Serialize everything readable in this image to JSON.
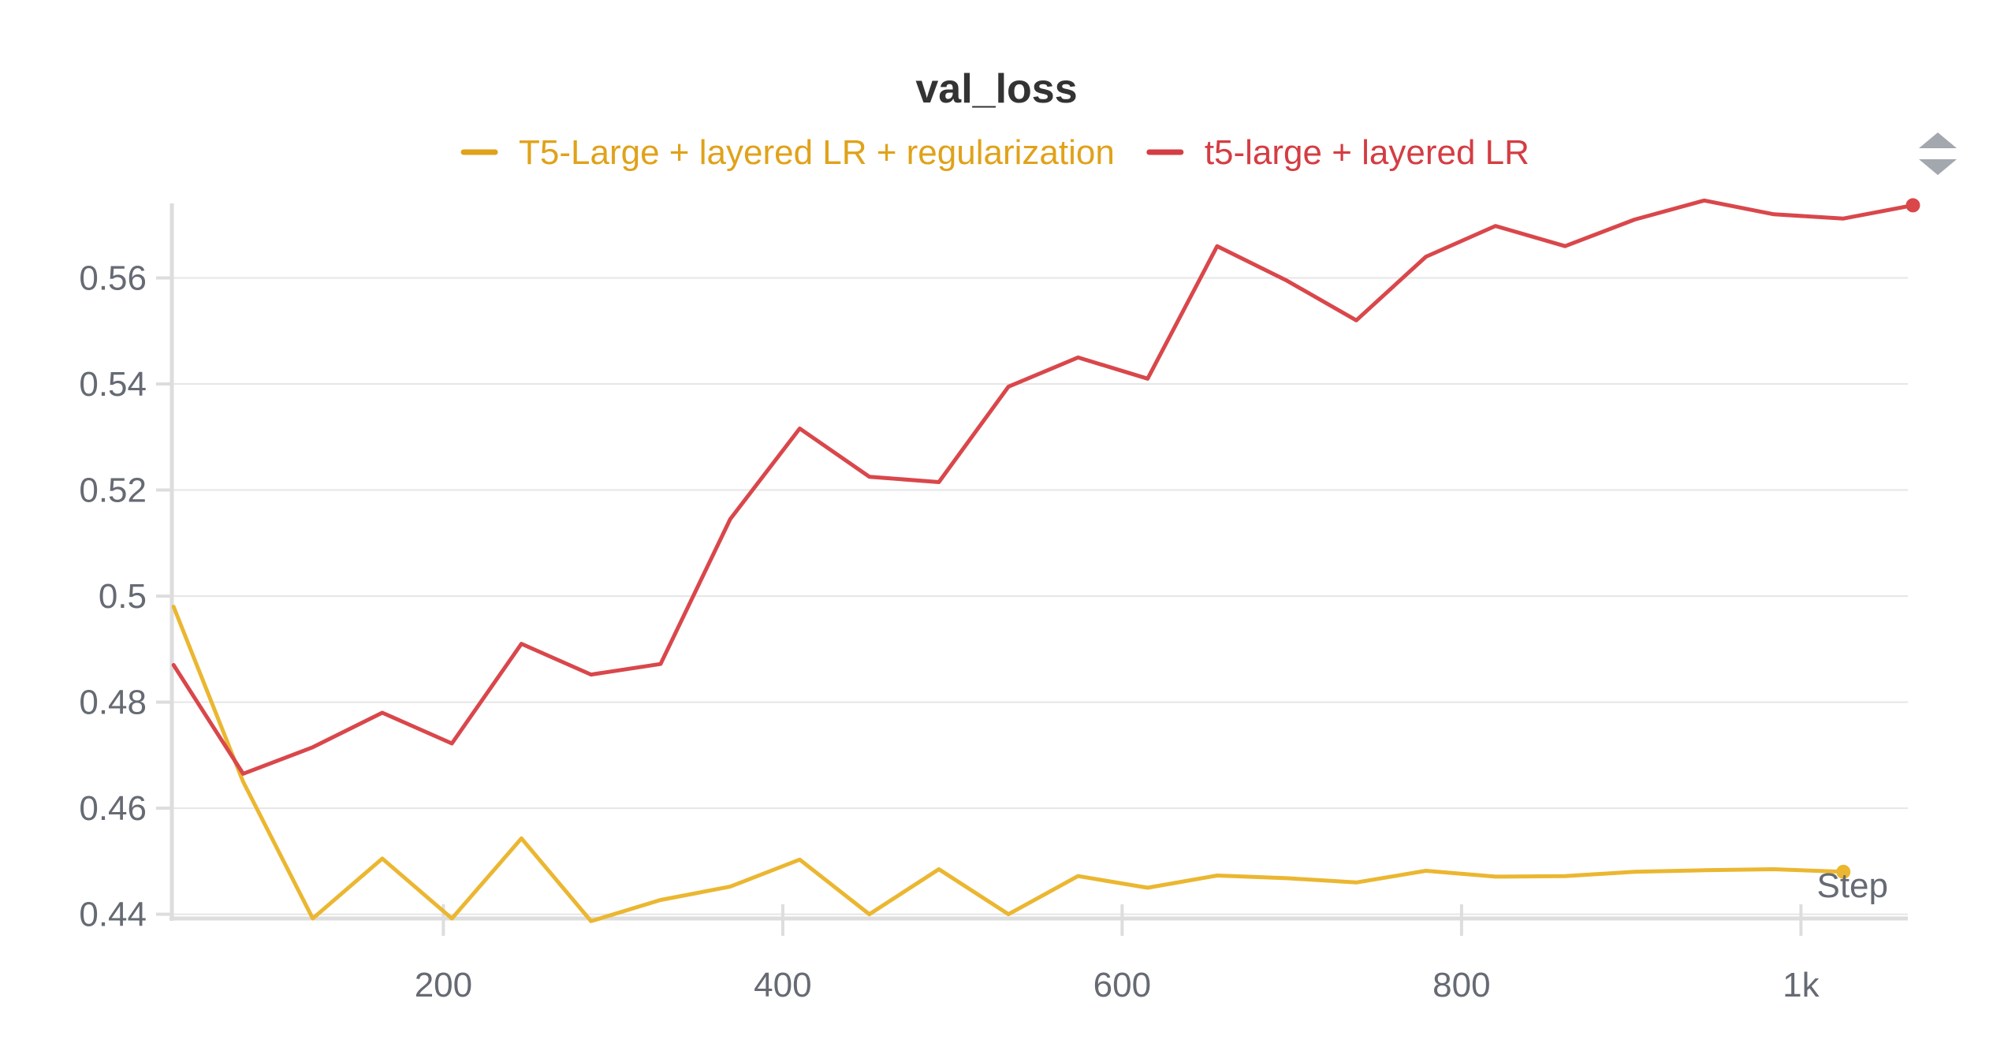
{
  "chart_data": {
    "type": "line",
    "title": "val_loss",
    "xlabel": "Step",
    "ylabel": "",
    "xlim": [
      40,
      1063
    ],
    "ylim": [
      0.4392,
      0.5745
    ],
    "x_ticks": [
      {
        "value": 200,
        "label": "200"
      },
      {
        "value": 400,
        "label": "400"
      },
      {
        "value": 600,
        "label": "600"
      },
      {
        "value": 800,
        "label": "800"
      },
      {
        "value": 1000,
        "label": "1k"
      }
    ],
    "y_ticks": [
      {
        "value": 0.44,
        "label": "0.44"
      },
      {
        "value": 0.46,
        "label": "0.46"
      },
      {
        "value": 0.48,
        "label": "0.48"
      },
      {
        "value": 0.5,
        "label": "0.5"
      },
      {
        "value": 0.52,
        "label": "0.52"
      },
      {
        "value": 0.54,
        "label": "0.54"
      },
      {
        "value": 0.56,
        "label": "0.56"
      }
    ],
    "grid": true,
    "legend_position": "top-center",
    "series": [
      {
        "name": "T5-Large + layered LR + regularization",
        "color": "#ebb731",
        "legend_color": "#e0a21a",
        "x": [
          41,
          82,
          123,
          164,
          205,
          246,
          287,
          328,
          369,
          410,
          451,
          492,
          533,
          574,
          615,
          656,
          697,
          738,
          779,
          820,
          861,
          902,
          943,
          984,
          1025
        ],
        "y": [
          0.498,
          0.465,
          0.4392,
          0.4505,
          0.4392,
          0.4543,
          0.4387,
          0.4427,
          0.4452,
          0.4503,
          0.44,
          0.4485,
          0.44,
          0.4472,
          0.445,
          0.4473,
          0.4468,
          0.446,
          0.4482,
          0.4471,
          0.4472,
          0.448,
          0.4483,
          0.4485,
          0.448
        ],
        "end_marker": true
      },
      {
        "name": "t5-large + layered LR",
        "color": "#d9474b",
        "legend_color": "#d43d43",
        "x": [
          41,
          82,
          123,
          164,
          205,
          246,
          287,
          328,
          369,
          410,
          451,
          492,
          533,
          574,
          615,
          656,
          697,
          738,
          779,
          820,
          861,
          902,
          943,
          984,
          1025,
          1066
        ],
        "y": [
          0.487,
          0.4665,
          0.4715,
          0.478,
          0.4722,
          0.491,
          0.4852,
          0.4872,
          0.5145,
          0.5316,
          0.5225,
          0.5215,
          0.5395,
          0.545,
          0.541,
          0.566,
          0.5595,
          0.552,
          0.564,
          0.5698,
          0.566,
          0.571,
          0.5746,
          0.572,
          0.5712,
          0.5737
        ],
        "end_marker": true
      }
    ]
  }
}
